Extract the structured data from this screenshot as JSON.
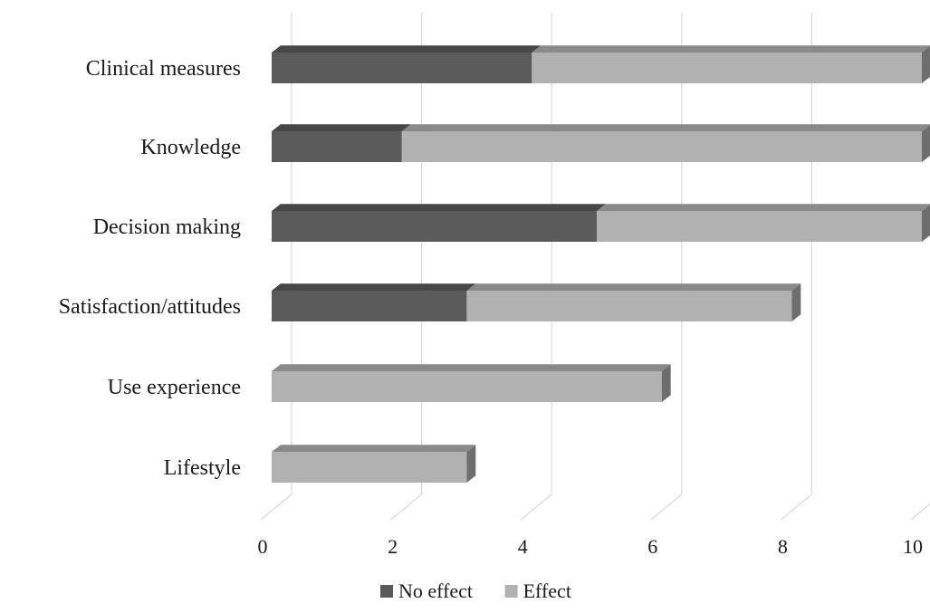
{
  "chart_data": {
    "type": "bar",
    "orientation": "horizontal",
    "stacked": true,
    "style": "3d",
    "categories": [
      "Clinical measures",
      "Knowledge",
      "Decision making",
      "Satisfaction/attitudes",
      "Use experience",
      "Lifestyle"
    ],
    "series": [
      {
        "name": "No effect",
        "values": [
          4,
          2,
          5,
          3,
          0,
          0
        ],
        "color": "#5b5b5b"
      },
      {
        "name": "Effect",
        "values": [
          6,
          8,
          5,
          5,
          6,
          3
        ],
        "color": "#b1b1b1"
      }
    ],
    "xlim": [
      0,
      10
    ],
    "xticks": [
      "0",
      "2",
      "4",
      "6",
      "8",
      "10"
    ],
    "grid": true,
    "legend_position": "bottom",
    "title": "",
    "xlabel": "",
    "ylabel": ""
  }
}
